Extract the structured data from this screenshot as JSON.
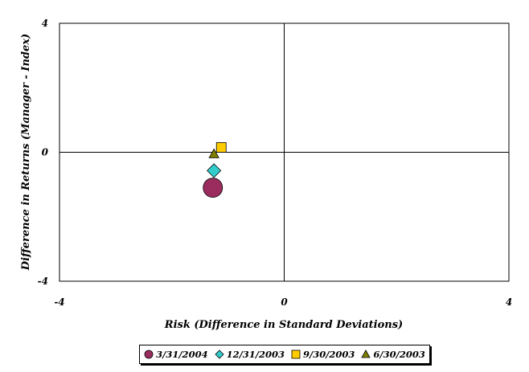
{
  "chart_data": {
    "type": "scatter",
    "title": "",
    "xlabel": "Risk (Difference in Standard Deviations)",
    "ylabel": "Difference in Returns (Manager - Index)",
    "xlim": [
      -4,
      4
    ],
    "ylim": [
      -4,
      4
    ],
    "x_ticks": [
      "-4",
      "0",
      "4"
    ],
    "y_ticks": [
      "4",
      "0",
      "-4"
    ],
    "grid": false,
    "crosshair_at": [
      0,
      0
    ],
    "legend_position": "bottom",
    "series": [
      {
        "name": "3/31/2004",
        "marker": "circle",
        "color": "#9b2d5e",
        "size": "large",
        "points": [
          [
            -1.27,
            -1.1
          ]
        ]
      },
      {
        "name": "12/31/2003",
        "marker": "diamond",
        "color": "#33cccc",
        "size": "medium",
        "points": [
          [
            -1.25,
            -0.57
          ]
        ]
      },
      {
        "name": "9/30/2003",
        "marker": "square",
        "color": "#ffcc00",
        "size": "small",
        "points": [
          [
            -1.12,
            0.15
          ]
        ]
      },
      {
        "name": "6/30/2003",
        "marker": "triangle",
        "color": "#808000",
        "size": "small",
        "points": [
          [
            -1.25,
            -0.05
          ]
        ]
      }
    ]
  }
}
